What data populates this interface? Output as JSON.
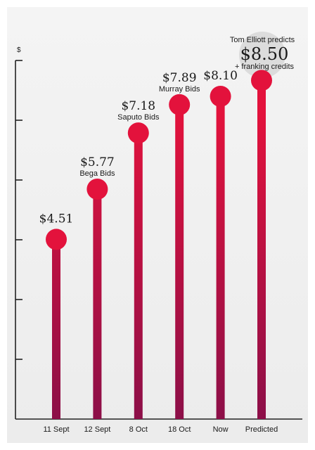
{
  "chart_data": {
    "type": "lollipop",
    "y_unit_label": "$",
    "ylim": [
      0,
      9
    ],
    "y_gridline_step": 1.5,
    "categories": [
      "11 Sept",
      "12 Sept",
      "8 Oct",
      "18 Oct",
      "Now",
      "Predicted"
    ],
    "values": [
      4.51,
      5.77,
      7.18,
      7.89,
      8.1,
      8.5
    ],
    "value_labels": [
      "$4.51",
      "$5.77",
      "$7.18",
      "$7.89",
      "$8.10",
      ""
    ],
    "point_labels": [
      "",
      "Bega Bids",
      "Saputo Bids",
      "Murray Bids",
      "",
      ""
    ],
    "prediction": {
      "heading": "Tom Elliott predicts",
      "value": "$8.50",
      "note": "+ franking credits"
    }
  },
  "colors": {
    "stem_top": "#e3123c",
    "stem_bottom": "#8c0f48",
    "dot": "#e3123c",
    "axis": "#222222",
    "prediction_bubble": "#dcdcdc"
  }
}
